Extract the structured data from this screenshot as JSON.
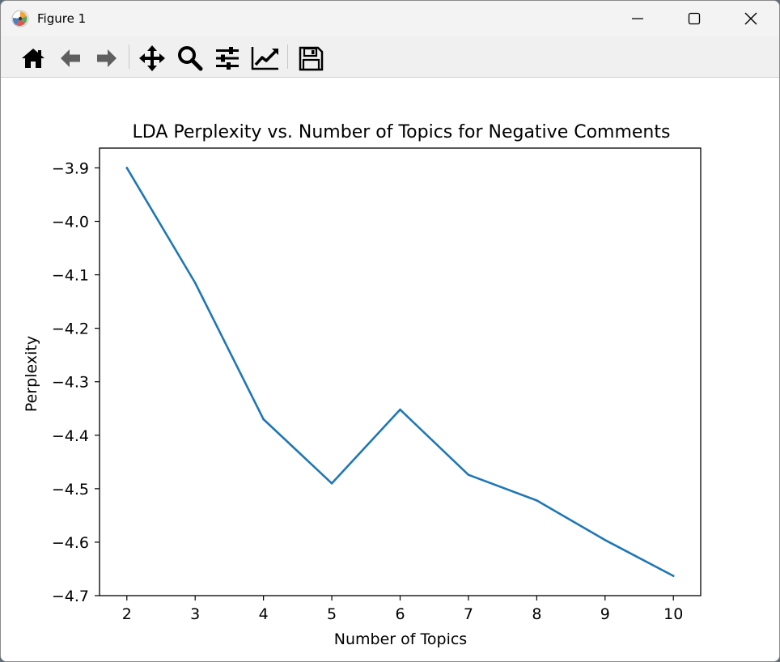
{
  "window": {
    "title": "Figure 1"
  },
  "toolbar": {
    "items": [
      {
        "name": "home-icon"
      },
      {
        "name": "back-arrow-icon"
      },
      {
        "name": "forward-arrow-icon"
      },
      {
        "name": "pan-icon"
      },
      {
        "name": "zoom-icon"
      },
      {
        "name": "subplots-config-icon"
      },
      {
        "name": "edit-curves-icon"
      },
      {
        "name": "save-icon"
      }
    ]
  },
  "chart_data": {
    "type": "line",
    "title": "LDA Perplexity vs. Number of Topics for Negative Comments",
    "xlabel": "Number of Topics",
    "ylabel": "Perplexity",
    "xlim": [
      1.6,
      10.4
    ],
    "ylim": [
      -4.7,
      -3.863
    ],
    "xticks": [
      2,
      3,
      4,
      5,
      6,
      7,
      8,
      9,
      10
    ],
    "yticks": [
      -3.9,
      -4.0,
      -4.1,
      -4.2,
      -4.3,
      -4.4,
      -4.5,
      -4.6,
      -4.7
    ],
    "ytick_labels": [
      "−3.9",
      "−4.0",
      "−4.1",
      "−4.2",
      "−4.3",
      "−4.4",
      "−4.5",
      "−4.6",
      "−4.7"
    ],
    "series": [
      {
        "color": "#1f77b4",
        "x": [
          2,
          3,
          4,
          5,
          6,
          7,
          8,
          9,
          10
        ],
        "y": [
          -3.9,
          -4.115,
          -4.37,
          -4.49,
          -4.352,
          -4.474,
          -4.522,
          -4.596,
          -4.663
        ]
      }
    ],
    "grid": false,
    "legend": "none"
  }
}
